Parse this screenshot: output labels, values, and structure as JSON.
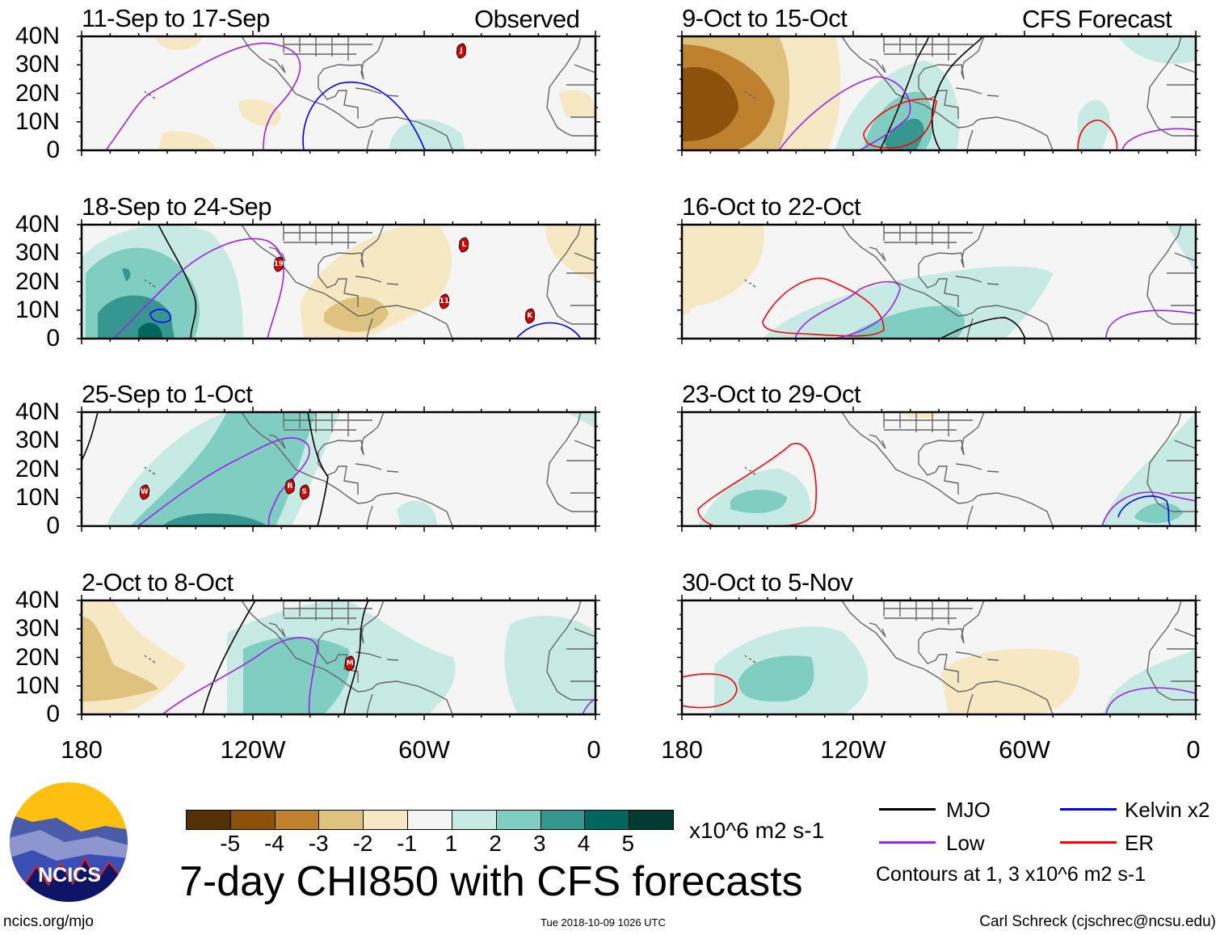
{
  "chart_data": {
    "type": "heatmap",
    "title": "7-day CHI850 with CFS forecasts",
    "units": "x10^6 m2 s-1",
    "color_levels": [
      -5,
      -4,
      -3,
      -2,
      -1,
      1,
      2,
      3,
      4,
      5
    ],
    "colors": [
      "#543005",
      "#8c510a",
      "#bf812d",
      "#dfc27d",
      "#f6e8c3",
      "#f5f5f5",
      "#c7eae5",
      "#80cdc1",
      "#35978f",
      "#01665e",
      "#003c30"
    ],
    "lat_ticks": [
      "40N",
      "30N",
      "20N",
      "10N",
      "0"
    ],
    "lon_ticks": [
      "180",
      "120W",
      "60W",
      "0"
    ],
    "lat_range": [
      0,
      40
    ],
    "lon_range": [
      -180,
      0
    ],
    "columns": {
      "left": "Observed",
      "right": "CFS Forecast"
    },
    "panels": [
      {
        "title": "11-Sep to 17-Sep",
        "type": "Observed",
        "storms": [
          {
            "label": "J",
            "lon": -47,
            "lat": 35
          }
        ]
      },
      {
        "title": "18-Sep to 24-Sep",
        "type": "Observed",
        "storms": [
          {
            "label": "19",
            "lon": -111,
            "lat": 26
          },
          {
            "label": "L",
            "lon": -46,
            "lat": 33
          },
          {
            "label": "11",
            "lon": -53,
            "lat": 13
          },
          {
            "label": "K",
            "lon": -23,
            "lat": 8
          }
        ]
      },
      {
        "title": "25-Sep to 1-Oct",
        "type": "Observed",
        "storms": [
          {
            "label": "W",
            "lon": -158,
            "lat": 12
          },
          {
            "label": "R",
            "lon": -107,
            "lat": 14
          },
          {
            "label": "S",
            "lon": -102,
            "lat": 12
          }
        ]
      },
      {
        "title": "2-Oct to 8-Oct",
        "type": "Observed",
        "storms": [
          {
            "label": "M",
            "lon": -86,
            "lat": 18
          }
        ]
      },
      {
        "title": "9-Oct to 15-Oct",
        "type": "CFS Forecast",
        "storms": []
      },
      {
        "title": "16-Oct to 22-Oct",
        "type": "CFS Forecast",
        "storms": []
      },
      {
        "title": "23-Oct to 29-Oct",
        "type": "CFS Forecast",
        "storms": []
      },
      {
        "title": "30-Oct to 5-Nov",
        "type": "CFS Forecast",
        "storms": []
      }
    ],
    "contour_legend": [
      {
        "name": "MJO",
        "color": "#000000"
      },
      {
        "name": "Kelvin x2",
        "color": "#0000ff"
      },
      {
        "name": "Low",
        "color": "#a020f0"
      },
      {
        "name": "ER",
        "color": "#ff0000"
      }
    ],
    "contour_note": "Contours at 1, 3 x10^6 m2 s-1"
  },
  "footer": {
    "logo_text": "NCICS",
    "url": "ncics.org/mjo",
    "timestamp": "Tue 2018-10-09 1026 UTC",
    "author": "Carl Schreck (cjschrec@ncsu.edu)"
  }
}
